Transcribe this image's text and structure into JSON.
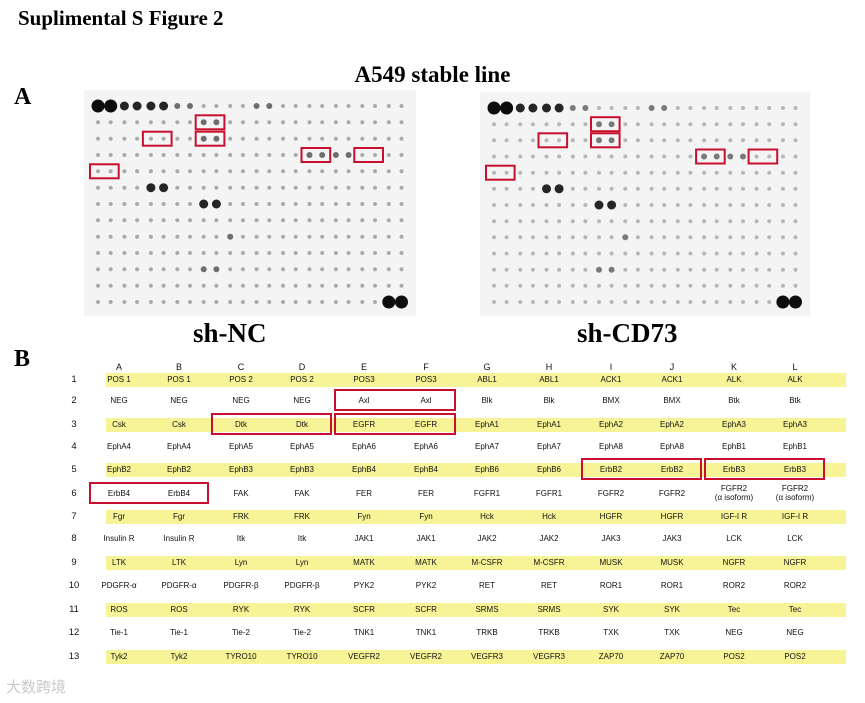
{
  "figure": {
    "title": "Suplimental S Figure 2",
    "panel_a_label": "A",
    "panel_b_label": "B",
    "array_title": "A549 stable line"
  },
  "blots": [
    {
      "label": "sh-NC",
      "spot_intensity": {
        "saturated": 0.95,
        "strong": 0.85,
        "medium": 0.55,
        "faint": 0.3
      }
    },
    {
      "label": "sh-CD73",
      "spot_intensity": {
        "saturated": 0.95,
        "strong": 0.85,
        "medium": 0.5,
        "faint": 0.25
      }
    }
  ],
  "colors": {
    "highlight_box": "#c8102e",
    "row_band": "#f7f497",
    "spot": "#000000"
  },
  "array_map": {
    "columns": [
      "A",
      "B",
      "C",
      "D",
      "E",
      "F",
      "G",
      "H",
      "I",
      "J",
      "K",
      "L"
    ],
    "rows": [
      {
        "number": "1",
        "highlighted": true,
        "cells": [
          "POS 1",
          "POS 1",
          "POS 2",
          "POS 2",
          "POS3",
          "POS3",
          "ABL1",
          "ABL1",
          "ACK1",
          "ACK1",
          "ALK",
          "ALK"
        ]
      },
      {
        "number": "2",
        "highlighted": false,
        "cells": [
          "NEG",
          "NEG",
          "NEG",
          "NEG",
          "Axl",
          "Axl",
          "Blk",
          "Blk",
          "BMX",
          "BMX",
          "Btk",
          "Btk"
        ]
      },
      {
        "number": "3",
        "highlighted": true,
        "cells": [
          "Csk",
          "Csk",
          "Dtk",
          "Dtk",
          "EGFR",
          "EGFR",
          "EphA1",
          "EphA1",
          "EphA2",
          "EphA2",
          "EphA3",
          "EphA3"
        ]
      },
      {
        "number": "4",
        "highlighted": false,
        "cells": [
          "EphA4",
          "EphA4",
          "EphA5",
          "EphA5",
          "EphA6",
          "EphA6",
          "EphA7",
          "EphA7",
          "EphA8",
          "EphA8",
          "EphB1",
          "EphB1"
        ]
      },
      {
        "number": "5",
        "highlighted": true,
        "cells": [
          "EphB2",
          "EphB2",
          "EphB3",
          "EphB3",
          "EphB4",
          "EphB4",
          "EphB6",
          "EphB6",
          "ErbB2",
          "ErbB2",
          "ErbB3",
          "ErbB3"
        ]
      },
      {
        "number": "6",
        "highlighted": false,
        "cells": [
          "ErbB4",
          "ErbB4",
          "FAK",
          "FAK",
          "FER",
          "FER",
          "FGFR1",
          "FGFR1",
          "FGFR2",
          "FGFR2",
          "FGFR2\n(α isoform)",
          "FGFR2\n(α isoform)"
        ]
      },
      {
        "number": "7",
        "highlighted": true,
        "cells": [
          "Fgr",
          "Fgr",
          "FRK",
          "FRK",
          "Fyn",
          "Fyn",
          "Hck",
          "Hck",
          "HGFR",
          "HGFR",
          "IGF-I R",
          "IGF-I R"
        ]
      },
      {
        "number": "8",
        "highlighted": false,
        "cells": [
          "Insulin R",
          "Insulin R",
          "Itk",
          "Itk",
          "JAK1",
          "JAK1",
          "JAK2",
          "JAK2",
          "JAK3",
          "JAK3",
          "LCK",
          "LCK"
        ]
      },
      {
        "number": "9",
        "highlighted": true,
        "cells": [
          "LTK",
          "LTK",
          "Lyn",
          "Lyn",
          "MATK",
          "MATK",
          "M-CSFR",
          "M-CSFR",
          "MUSK",
          "MUSK",
          "NGFR",
          "NGFR"
        ]
      },
      {
        "number": "10",
        "highlighted": false,
        "cells": [
          "PDGFR-α",
          "PDGFR-α",
          "PDGFR-β",
          "PDGFR-β",
          "PYK2",
          "PYK2",
          "RET",
          "RET",
          "ROR1",
          "ROR1",
          "ROR2",
          "ROR2"
        ]
      },
      {
        "number": "11",
        "highlighted": true,
        "cells": [
          "ROS",
          "ROS",
          "RYK",
          "RYK",
          "SCFR",
          "SCFR",
          "SRMS",
          "SRMS",
          "SYK",
          "SYK",
          "Tec",
          "Tec"
        ]
      },
      {
        "number": "12",
        "highlighted": false,
        "cells": [
          "Tie-1",
          "Tie-1",
          "Tie-2",
          "Tie-2",
          "TNK1",
          "TNK1",
          "TRKB",
          "TRKB",
          "TXK",
          "TXK",
          "NEG",
          "NEG"
        ]
      },
      {
        "number": "13",
        "highlighted": true,
        "cells": [
          "Tyk2",
          "Tyk2",
          "TYRO10",
          "TYRO10",
          "VEGFR2",
          "VEGFR2",
          "VEGFR3",
          "VEGFR3",
          "ZAP70",
          "ZAP70",
          "POS2",
          "POS2"
        ]
      }
    ],
    "highlighted_pairs": [
      "Axl",
      "Dtk",
      "EGFR",
      "ErbB2",
      "ErbB3",
      "ErbB4"
    ]
  },
  "watermark": "大数跨境"
}
